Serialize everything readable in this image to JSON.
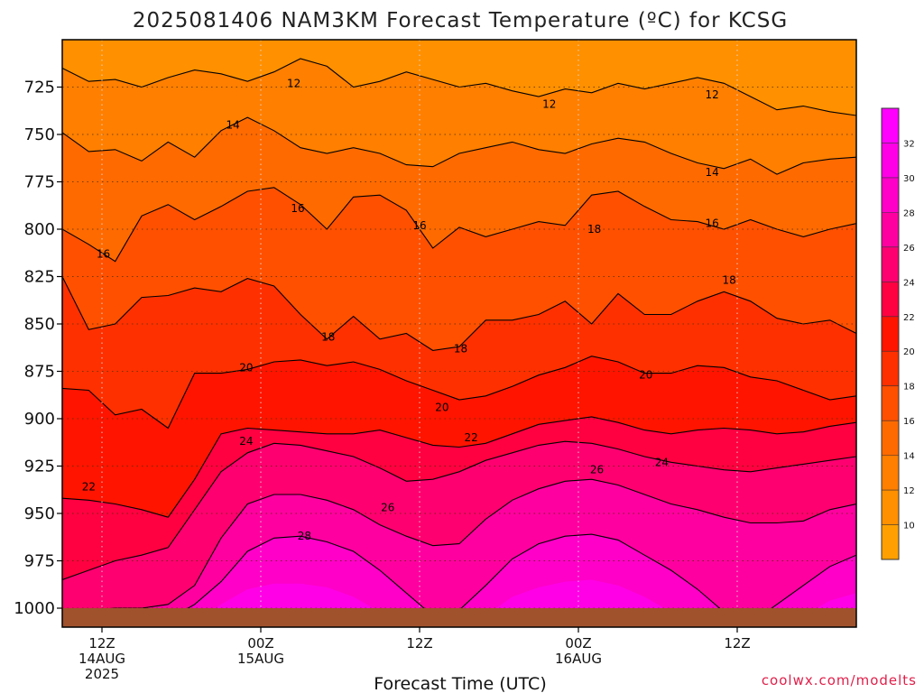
{
  "chart_data": {
    "type": "heatmap",
    "title": "2025081406 NAM3KM Forecast Temperature (ºC) for KCSG",
    "xlabel": "Forecast Time (UTC)",
    "ylabel": "",
    "credit": "coolwx.com/modelts",
    "y_axis": {
      "inverted": true,
      "ylim": [
        700,
        1010
      ],
      "ticks": [
        725,
        750,
        775,
        800,
        825,
        850,
        875,
        900,
        925,
        950,
        975,
        1000
      ]
    },
    "x_axis": {
      "xlim_hours": [
        -3,
        57
      ],
      "ticks": [
        {
          "hour": 0,
          "lines": [
            "12Z",
            "14AUG",
            "2025"
          ]
        },
        {
          "hour": 12,
          "lines": [
            "00Z",
            "15AUG"
          ]
        },
        {
          "hour": 24,
          "lines": [
            "12Z"
          ]
        },
        {
          "hour": 36,
          "lines": [
            "00Z",
            "16AUG"
          ]
        },
        {
          "hour": 48,
          "lines": [
            "12Z"
          ]
        }
      ]
    },
    "grid": true,
    "colorbar": {
      "levels": [
        8,
        10,
        12,
        14,
        16,
        18,
        20,
        22,
        24,
        26,
        28,
        30,
        32,
        34
      ],
      "labels": [
        10,
        12,
        14,
        16,
        18,
        20,
        22,
        24,
        26,
        28,
        30,
        32
      ],
      "colors": [
        "#ffa000",
        "#ff9000",
        "#ff7f00",
        "#ff6a00",
        "#ff5000",
        "#ff3000",
        "#ff1400",
        "#ff0040",
        "#ff0070",
        "#ff00a0",
        "#ff00c8",
        "#ff00e6",
        "#ff00ff"
      ]
    },
    "contour_levels": [
      12,
      14,
      16,
      18,
      20,
      22,
      24,
      26,
      28
    ],
    "contour_labels": [
      {
        "text": "12",
        "hour": 14.5,
        "p": 723
      },
      {
        "text": "12",
        "hour": 33.8,
        "p": 734
      },
      {
        "text": "12",
        "hour": 46.1,
        "p": 729
      },
      {
        "text": "14",
        "hour": 9.9,
        "p": 745
      },
      {
        "text": "14",
        "hour": 46.1,
        "p": 770
      },
      {
        "text": "16",
        "hour": 0.1,
        "p": 813
      },
      {
        "text": "16",
        "hour": 14.8,
        "p": 789
      },
      {
        "text": "16",
        "hour": 24.0,
        "p": 798
      },
      {
        "text": "16",
        "hour": 46.1,
        "p": 797
      },
      {
        "text": "18",
        "hour": 37.2,
        "p": 800
      },
      {
        "text": "18",
        "hour": 47.4,
        "p": 827
      },
      {
        "text": "18",
        "hour": 17.1,
        "p": 857
      },
      {
        "text": "18",
        "hour": 27.1,
        "p": 863
      },
      {
        "text": "20",
        "hour": 10.9,
        "p": 873
      },
      {
        "text": "20",
        "hour": 25.7,
        "p": 894
      },
      {
        "text": "20",
        "hour": 41.1,
        "p": 877
      },
      {
        "text": "22",
        "hour": -1.0,
        "p": 936
      },
      {
        "text": "22",
        "hour": 27.9,
        "p": 910
      },
      {
        "text": "24",
        "hour": 10.9,
        "p": 912
      },
      {
        "text": "24",
        "hour": 42.3,
        "p": 923
      },
      {
        "text": "26",
        "hour": 37.4,
        "p": 927
      },
      {
        "text": "26",
        "hour": 21.6,
        "p": 947
      },
      {
        "text": "28",
        "hour": 15.3,
        "p": 962
      }
    ],
    "series": [
      {
        "value": 12,
        "x": [
          -3,
          -1,
          1,
          3,
          5,
          7,
          9,
          11,
          13,
          15,
          17,
          19,
          21,
          23,
          25,
          27,
          29,
          31,
          33,
          35,
          37,
          39,
          41,
          43,
          45,
          47,
          49,
          51,
          53,
          55,
          57
        ],
        "p": [
          715,
          722,
          721,
          725,
          720,
          716,
          718,
          722,
          717,
          710,
          714,
          725,
          722,
          717,
          721,
          725,
          723,
          727,
          730,
          726,
          728,
          723,
          726,
          723,
          720,
          723,
          730,
          737,
          735,
          738,
          740
        ]
      },
      {
        "value": 14,
        "x": [
          -3,
          -1,
          1,
          3,
          5,
          7,
          9,
          11,
          13,
          15,
          17,
          19,
          21,
          23,
          25,
          27,
          29,
          31,
          33,
          35,
          37,
          39,
          41,
          43,
          45,
          47,
          49,
          51,
          53,
          55,
          57
        ],
        "p": [
          749,
          759,
          758,
          764,
          754,
          762,
          748,
          741,
          748,
          757,
          760,
          757,
          760,
          766,
          767,
          760,
          757,
          754,
          758,
          760,
          755,
          752,
          754,
          760,
          765,
          768,
          763,
          771,
          765,
          763,
          762
        ]
      },
      {
        "value": 16,
        "x": [
          -3,
          -1,
          1,
          3,
          5,
          7,
          9,
          11,
          13,
          15,
          17,
          19,
          21,
          23,
          25,
          27,
          29,
          31,
          33,
          35,
          37,
          39,
          41,
          43,
          45,
          47,
          49,
          51,
          53,
          55,
          57
        ],
        "p": [
          800,
          808,
          817,
          793,
          787,
          795,
          788,
          780,
          778,
          787,
          800,
          783,
          782,
          790,
          810,
          799,
          804,
          800,
          796,
          798,
          782,
          780,
          788,
          795,
          796,
          800,
          795,
          800,
          804,
          800,
          797
        ]
      },
      {
        "value": 18,
        "x": [
          -3,
          -1,
          1,
          3,
          5,
          7,
          9,
          11,
          13,
          15,
          17,
          19,
          21,
          23,
          25,
          27,
          29,
          31,
          33,
          35,
          37,
          39,
          41,
          43,
          45,
          47,
          49,
          51,
          53,
          55,
          57
        ],
        "p": [
          825,
          853,
          850,
          836,
          835,
          831,
          833,
          826,
          830,
          845,
          858,
          846,
          858,
          855,
          864,
          862,
          848,
          848,
          845,
          838,
          850,
          834,
          845,
          845,
          838,
          833,
          838,
          847,
          850,
          848,
          855
        ]
      },
      {
        "value": 20,
        "x": [
          -3,
          -1,
          1,
          3,
          5,
          7,
          9,
          11,
          13,
          15,
          17,
          19,
          21,
          23,
          25,
          27,
          29,
          31,
          33,
          35,
          37,
          39,
          41,
          43,
          45,
          47,
          49,
          51,
          53,
          55,
          57
        ],
        "p": [
          884,
          885,
          898,
          895,
          905,
          876,
          876,
          874,
          870,
          869,
          872,
          870,
          874,
          880,
          885,
          890,
          888,
          883,
          877,
          873,
          867,
          870,
          876,
          876,
          872,
          873,
          878,
          880,
          885,
          890,
          888
        ]
      },
      {
        "value": 22,
        "x": [
          -3,
          -1,
          1,
          3,
          5,
          7,
          9,
          11,
          13,
          15,
          17,
          19,
          21,
          23,
          25,
          27,
          29,
          31,
          33,
          35,
          37,
          39,
          41,
          43,
          45,
          47,
          49,
          51,
          53,
          55,
          57
        ],
        "p": [
          942,
          943,
          945,
          948,
          952,
          932,
          908,
          905,
          906,
          907,
          908,
          908,
          906,
          910,
          914,
          915,
          913,
          908,
          903,
          901,
          899,
          902,
          906,
          908,
          906,
          905,
          906,
          908,
          907,
          904,
          902
        ]
      },
      {
        "value": 24,
        "x": [
          -3,
          -1,
          1,
          3,
          5,
          7,
          9,
          11,
          13,
          15,
          17,
          19,
          21,
          23,
          25,
          27,
          29,
          31,
          33,
          35,
          37,
          39,
          41,
          43,
          45,
          47,
          49,
          51,
          53,
          55,
          57
        ],
        "p": [
          985,
          980,
          975,
          972,
          968,
          948,
          928,
          918,
          913,
          914,
          917,
          920,
          926,
          933,
          932,
          928,
          922,
          918,
          914,
          912,
          913,
          916,
          920,
          923,
          925,
          927,
          928,
          926,
          924,
          922,
          920
        ]
      },
      {
        "value": 26,
        "x": [
          -3,
          -1,
          1,
          3,
          5,
          7,
          9,
          11,
          13,
          15,
          17,
          19,
          21,
          23,
          25,
          27,
          29,
          31,
          33,
          35,
          37,
          39,
          41,
          43,
          45,
          47,
          49,
          51,
          53,
          55,
          57
        ],
        "p": [
          1002,
          1001,
          1000,
          1000,
          998,
          988,
          963,
          945,
          940,
          940,
          943,
          948,
          956,
          962,
          967,
          966,
          953,
          943,
          937,
          933,
          932,
          935,
          940,
          945,
          948,
          952,
          955,
          955,
          954,
          948,
          945
        ]
      },
      {
        "value": 28,
        "x": [
          -3,
          -1,
          1,
          3,
          5,
          7,
          9,
          11,
          13,
          15,
          17,
          19,
          21,
          23,
          25,
          27,
          29,
          31,
          33,
          35,
          37,
          39,
          41,
          43,
          45,
          47,
          49,
          51,
          53,
          55,
          57
        ],
        "p": [
          1010,
          1010,
          1010,
          1009,
          1006,
          998,
          986,
          970,
          963,
          962,
          965,
          970,
          980,
          992,
          1004,
          1001,
          988,
          974,
          966,
          962,
          961,
          964,
          972,
          980,
          990,
          1002,
          1008,
          998,
          988,
          978,
          972
        ]
      },
      {
        "value": 30,
        "x": [
          -3,
          -1,
          1,
          3,
          5,
          7,
          9,
          11,
          13,
          15,
          17,
          19,
          21,
          23,
          25,
          27,
          29,
          31,
          33,
          35,
          37,
          39,
          41,
          43,
          45,
          47,
          49,
          51,
          53,
          55,
          57
        ],
        "p": [
          1010,
          1010,
          1010,
          1010,
          1010,
          1008,
          998,
          990,
          987,
          987,
          989,
          994,
          1002,
          1010,
          1010,
          1010,
          1004,
          994,
          989,
          986,
          985,
          988,
          994,
          1002,
          1008,
          1010,
          1010,
          1010,
          1004,
          996,
          992
        ]
      }
    ]
  }
}
